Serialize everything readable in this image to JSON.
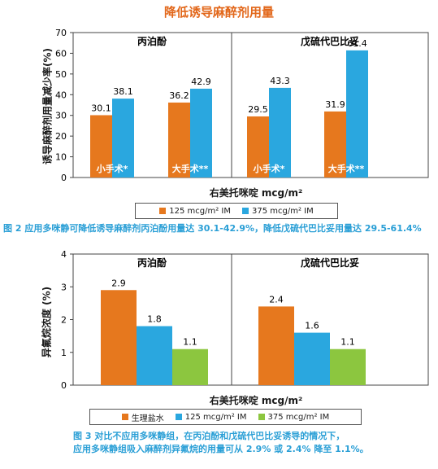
{
  "fig1": {
    "title": "降低诱导麻醉剂用量",
    "ylabel": "诱导麻醉剂用量减少率(%)",
    "xlabel": "右美托咪啶 mcg/m²",
    "caption": "图 2   应用多咪静可降低诱导麻醉剂丙泊酚用量达 30.1-42.9%，降低戊硫代巴比妥用量达 29.5-61.4%",
    "legend": [
      "125 mcg/m² IM",
      "375 mcg/m² IM"
    ],
    "colors": {
      "series1": "#e6781e",
      "series2": "#2aa7df",
      "caption": "#2a9fd6",
      "title": "#e2671a"
    }
  },
  "fig2": {
    "ylabel": "异氟烷浓度 (%)",
    "xlabel": "右美托咪啶 mcg/m²",
    "caption_line1": "图 3   对比不应用多咪静组，在丙泊酚和戊硫代巴比妥诱导的情况下，",
    "caption_line2": "应用多咪静组吸入麻醉剂异氟烷的用量可从 2.9% 或 2.4% 降至 1.1%。",
    "legend": [
      "生理盐水",
      "125 mcg/m² IM",
      "375 mcg/m² IM"
    ],
    "colors": {
      "series1": "#e6781e",
      "series2": "#2aa7df",
      "series3": "#8cc63f"
    }
  },
  "chart_data": [
    {
      "type": "bar",
      "title": "降低诱导麻醉剂用量",
      "ylabel": "诱导麻醉剂用量减少率(%)",
      "xlabel": "右美托咪啶 mcg/m²",
      "ylim": [
        0,
        70
      ],
      "yticks": [
        0,
        10,
        20,
        30,
        40,
        50,
        60,
        70
      ],
      "grid": false,
      "legend_position": "bottom",
      "panels": [
        {
          "name": "丙泊酚",
          "categories": [
            "小手术*",
            "大手术**"
          ],
          "series": [
            {
              "name": "125 mcg/m² IM",
              "values": [
                30.1,
                36.2
              ]
            },
            {
              "name": "375 mcg/m² IM",
              "values": [
                38.1,
                42.9
              ]
            }
          ]
        },
        {
          "name": "戊硫代巴比妥",
          "categories": [
            "小手术*",
            "大手术**"
          ],
          "series": [
            {
              "name": "125 mcg/m² IM",
              "values": [
                29.5,
                31.9
              ]
            },
            {
              "name": "375 mcg/m² IM",
              "values": [
                43.3,
                61.4
              ]
            }
          ]
        }
      ]
    },
    {
      "type": "bar",
      "ylabel": "异氟烷浓度 (%)",
      "xlabel": "右美托咪啶 mcg/m²",
      "ylim": [
        0,
        4
      ],
      "yticks": [
        0,
        1,
        2,
        3,
        4
      ],
      "grid": false,
      "legend_position": "bottom",
      "panels": [
        {
          "name": "丙泊酚",
          "series": [
            {
              "name": "生理盐水",
              "values": [
                2.9
              ]
            },
            {
              "name": "125 mcg/m² IM",
              "values": [
                1.8
              ]
            },
            {
              "name": "375 mcg/m² IM",
              "values": [
                1.1
              ]
            }
          ]
        },
        {
          "name": "戊硫代巴比妥",
          "series": [
            {
              "name": "生理盐水",
              "values": [
                2.4
              ]
            },
            {
              "name": "125 mcg/m² IM",
              "values": [
                1.6
              ]
            },
            {
              "name": "375 mcg/m² IM",
              "values": [
                1.1
              ]
            }
          ]
        }
      ]
    }
  ]
}
